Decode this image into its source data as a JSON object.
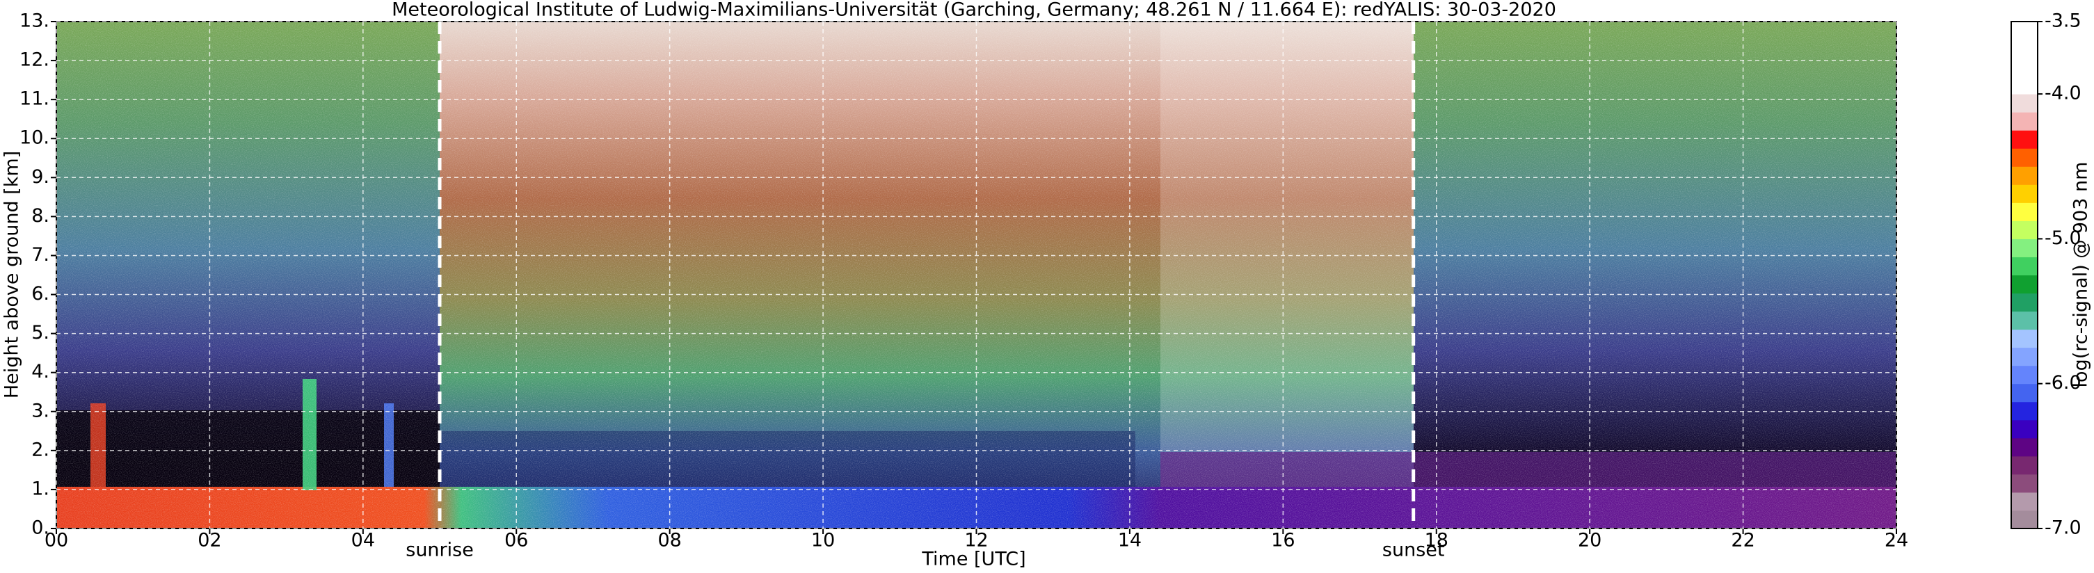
{
  "chart_data": {
    "type": "heatmap",
    "title": "Meteorological Institute of Ludwig-Maximilians-Universität (Garching, Germany; 48.261 N / 11.664 E):     redYALIS: 30-03-2020",
    "xlabel": "Time [UTC]",
    "ylabel": "Height above ground [km]",
    "xlim": [
      0,
      24
    ],
    "xticks": [
      {
        "value": 0,
        "label": "00"
      },
      {
        "value": 2,
        "label": "02"
      },
      {
        "value": 4,
        "label": "04"
      },
      {
        "value": 6,
        "label": "06"
      },
      {
        "value": 8,
        "label": "08"
      },
      {
        "value": 10,
        "label": "10"
      },
      {
        "value": 12,
        "label": "12"
      },
      {
        "value": 14,
        "label": "14"
      },
      {
        "value": 16,
        "label": "16"
      },
      {
        "value": 18,
        "label": "18"
      },
      {
        "value": 20,
        "label": "20"
      },
      {
        "value": 22,
        "label": "22"
      },
      {
        "value": 24,
        "label": "24"
      }
    ],
    "ylim": [
      0,
      13
    ],
    "yticks": [
      {
        "value": 0,
        "label": "0."
      },
      {
        "value": 1,
        "label": "1."
      },
      {
        "value": 2,
        "label": "2."
      },
      {
        "value": 3,
        "label": "3."
      },
      {
        "value": 4,
        "label": "4."
      },
      {
        "value": 5,
        "label": "5."
      },
      {
        "value": 6,
        "label": "6."
      },
      {
        "value": 7,
        "label": "7."
      },
      {
        "value": 8,
        "label": "8."
      },
      {
        "value": 9,
        "label": "9."
      },
      {
        "value": 10,
        "label": "10."
      },
      {
        "value": 11,
        "label": "11."
      },
      {
        "value": 12,
        "label": "12."
      },
      {
        "value": 13,
        "label": "13."
      }
    ],
    "grid": true,
    "annotations": [
      {
        "text": "sunrise",
        "x": 5.0
      },
      {
        "text": "sunset",
        "x": 17.7
      }
    ],
    "colorbar": {
      "label": "log(rc-signal) @ 903 nm",
      "lim": [
        -7.0,
        -3.5
      ],
      "ticks": [
        {
          "value": -7,
          "label": "-7.0"
        },
        {
          "value": -6,
          "label": "-6.0"
        },
        {
          "value": -5,
          "label": "-5.0"
        },
        {
          "value": -4,
          "label": "-4.0"
        },
        -3.5
      ],
      "colors": [
        "#a48c9c",
        "#b49aac",
        "#8c4c7c",
        "#782870",
        "#5e0484",
        "#3a00c0",
        "#2424e0",
        "#4464f0",
        "#6484fc",
        "#84a4ff",
        "#a4c4ff",
        "#5cc0a8",
        "#20a064",
        "#10a030",
        "#40d060",
        "#84f080",
        "#c4ff60",
        "#ffff40",
        "#ffd000",
        "#ffa000",
        "#ff6000",
        "#ff1010",
        "#f4b4b4",
        "#f0dcdc",
        "#ffffff",
        "#ffffff",
        "#ffffff",
        "#ffffff"
      ]
    }
  }
}
